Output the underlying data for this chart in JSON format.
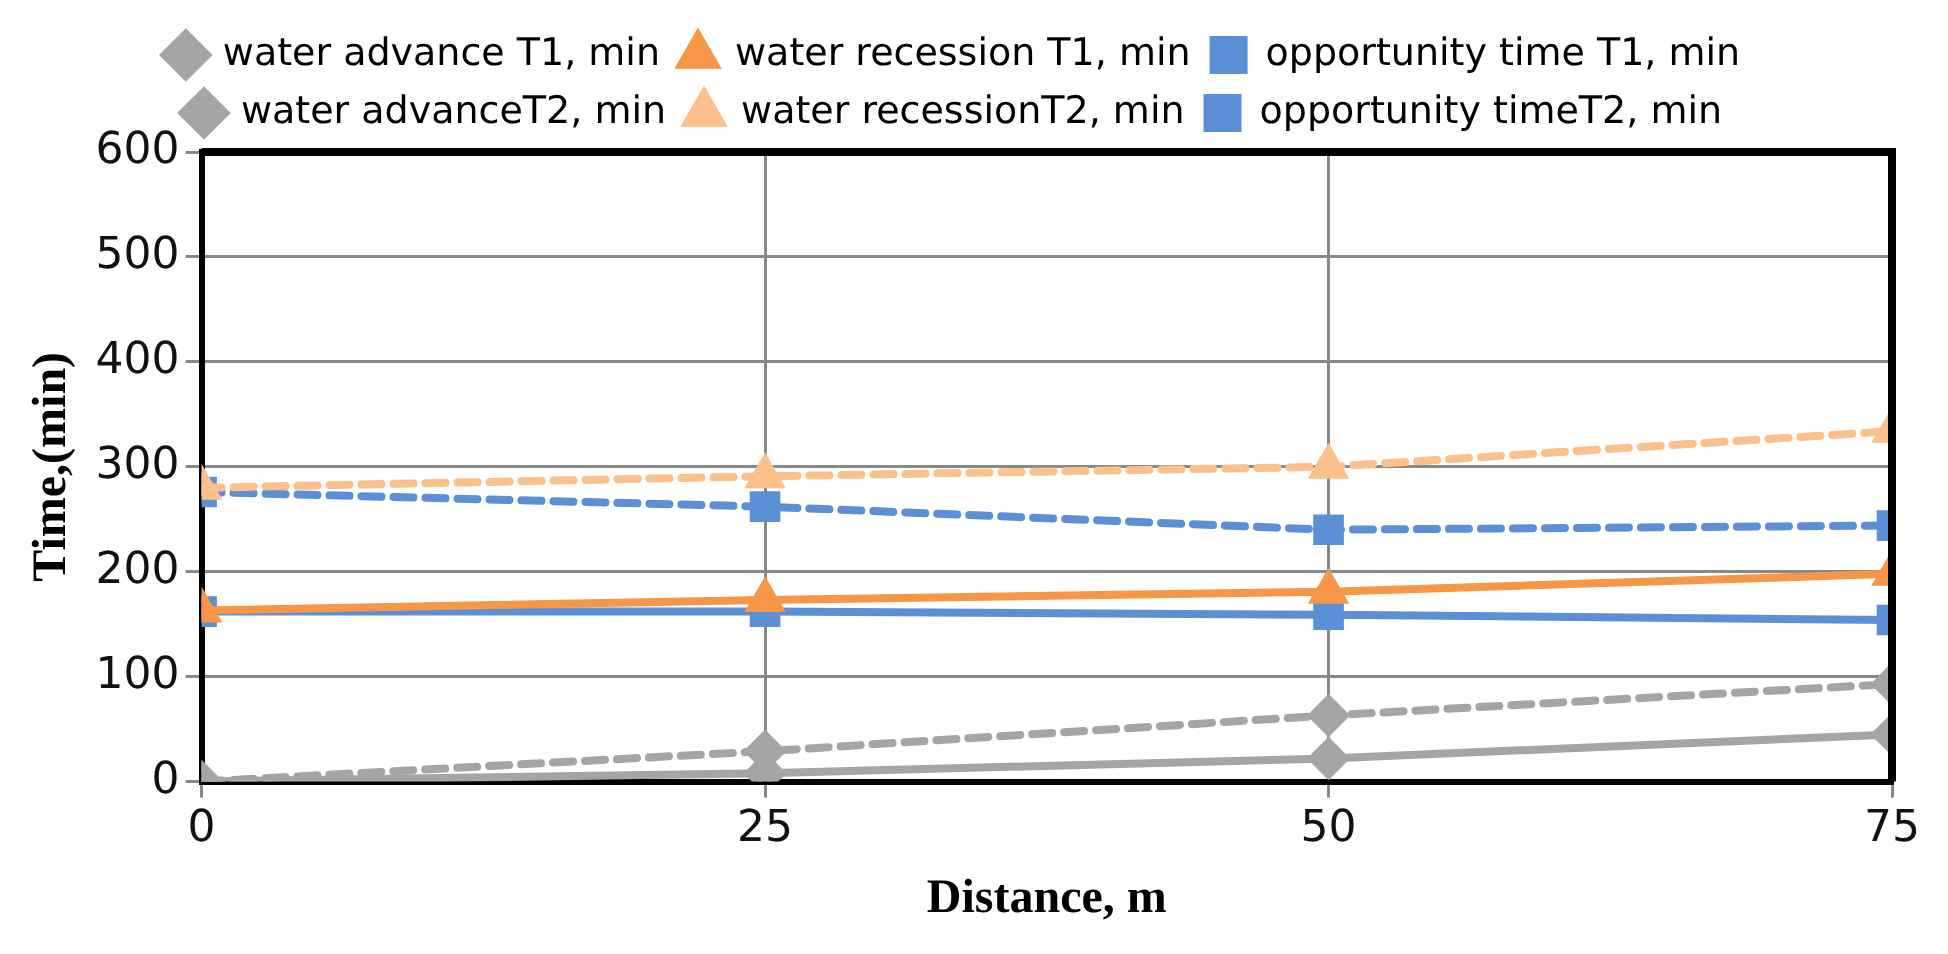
{
  "chart_data": {
    "type": "line",
    "xlabel": "Distance, m",
    "ylabel": "Time,(min)",
    "x": [
      0,
      25,
      50,
      75
    ],
    "xlim": [
      0,
      75
    ],
    "xticks": [
      0,
      25,
      50,
      75
    ],
    "ylim": [
      0,
      600
    ],
    "yticks": [
      0,
      100,
      200,
      300,
      400,
      500,
      600
    ],
    "grid": true,
    "legend": "top",
    "series": [
      {
        "name": "water advance T1, min",
        "color": "#a5a5a5",
        "marker": "diamond",
        "line_style": "solid",
        "values": [
          0,
          8,
          22,
          45
        ]
      },
      {
        "name": "water recession T1, min",
        "color": "#f79646",
        "marker": "triangle",
        "line_style": "solid",
        "values": [
          163,
          173,
          181,
          198
        ]
      },
      {
        "name": "opportunity time T1, min",
        "color": "#5b8fd6",
        "marker": "square",
        "line_style": "solid",
        "values": [
          162,
          162,
          159,
          154
        ]
      },
      {
        "name": "water advanceT2, min",
        "color": "#a5a5a5",
        "marker": "diamond",
        "line_style": "dashed",
        "values": [
          0,
          29,
          63,
          93
        ]
      },
      {
        "name": "water recessionT2, min",
        "color": "#fbc08c",
        "marker": "triangle",
        "line_style": "dashed",
        "values": [
          280,
          291,
          300,
          334
        ]
      },
      {
        "name": "opportunity timeT2, min",
        "color": "#5b8fd6",
        "marker": "square",
        "line_style": "dashed",
        "values": [
          276,
          262,
          240,
          244
        ]
      }
    ]
  }
}
